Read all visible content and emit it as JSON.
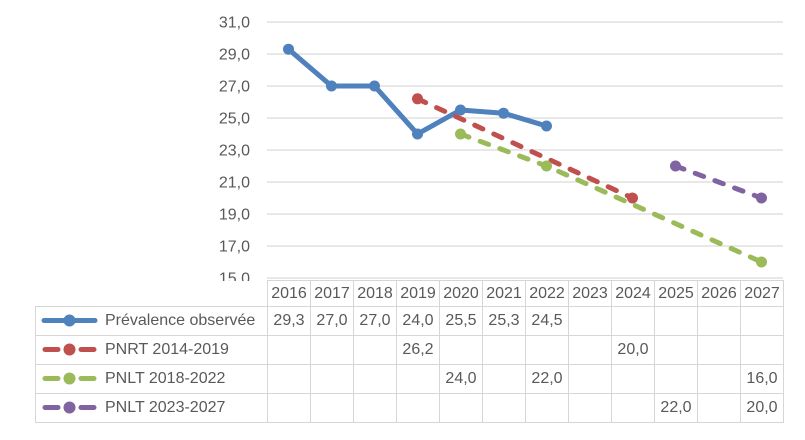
{
  "chart_data": {
    "type": "line",
    "title": "",
    "xlabel": "",
    "ylabel": "",
    "ylim": [
      15,
      31
    ],
    "y_step": 2,
    "y_tick_labels": [
      "31,0",
      "29,0",
      "27,0",
      "25,0",
      "23,0",
      "21,0",
      "19,0",
      "17,0",
      "15,0"
    ],
    "grid": true,
    "legend_position": "data-table-left",
    "decimal_separator": ",",
    "categories": [
      "2016",
      "2017",
      "2018",
      "2019",
      "2020",
      "2021",
      "2022",
      "2023",
      "2024",
      "2025",
      "2026",
      "2027"
    ],
    "series": [
      {
        "id": "prevalence-observee",
        "name": "Prévalence observée",
        "color": "#4F81BD",
        "dash": "solid",
        "values": [
          29.3,
          27.0,
          27.0,
          24.0,
          25.5,
          25.3,
          24.5,
          null,
          null,
          null,
          null,
          null
        ],
        "cells": [
          "29,3",
          "27,0",
          "27,0",
          "24,0",
          "25,5",
          "25,3",
          "24,5",
          "",
          "",
          "",
          "",
          ""
        ]
      },
      {
        "id": "pnrt-2014-2019",
        "name": "PNRT 2014-2019",
        "color": "#C0504D",
        "dash": "dashed",
        "values": [
          null,
          null,
          null,
          26.2,
          null,
          null,
          null,
          null,
          20.0,
          null,
          null,
          null
        ],
        "cells": [
          "",
          "",
          "",
          "26,2",
          "",
          "",
          "",
          "",
          "20,0",
          "",
          "",
          ""
        ]
      },
      {
        "id": "pnlt-2018-2022",
        "name": "PNLT 2018-2022",
        "color": "#9BBB59",
        "dash": "dashed",
        "values": [
          null,
          null,
          null,
          null,
          24.0,
          null,
          22.0,
          null,
          null,
          null,
          null,
          16.0
        ],
        "cells": [
          "",
          "",
          "",
          "",
          "24,0",
          "",
          "22,0",
          "",
          "",
          "",
          "",
          "16,0"
        ]
      },
      {
        "id": "pnlt-2023-2027",
        "name": "PNLT 2023-2027",
        "color": "#8064A2",
        "dash": "dashed",
        "values": [
          null,
          null,
          null,
          null,
          null,
          null,
          null,
          null,
          null,
          22.0,
          null,
          20.0
        ],
        "cells": [
          "",
          "",
          "",
          "",
          "",
          "",
          "",
          "",
          "",
          "22,0",
          "",
          "20,0"
        ]
      }
    ],
    "colors": {
      "gridline": "#D9D9D9",
      "axis_text": "#595959",
      "table_border": "#D6D6D6",
      "table_text": "#595959",
      "background": "#FFFFFF"
    }
  }
}
